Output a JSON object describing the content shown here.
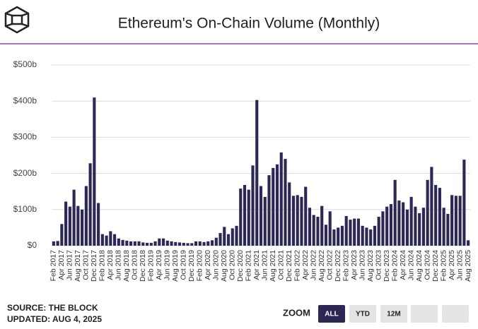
{
  "chart_data": {
    "type": "bar",
    "title": "Ethereum's On-Chain Volume (Monthly)",
    "source": "SOURCE: THE BLOCK",
    "updated": "UPDATED: AUG 4, 2025",
    "zoom": {
      "label": "ZOOM",
      "buttons": [
        "ALL",
        "YTD",
        "12M"
      ]
    },
    "color": "#2b2856",
    "grid": true,
    "ylim": [
      0,
      500
    ],
    "yticks": [
      {
        "value": 0,
        "label": "$0"
      },
      {
        "value": 100,
        "label": "$100b"
      },
      {
        "value": 200,
        "label": "$200b"
      },
      {
        "value": 300,
        "label": "$300b"
      },
      {
        "value": 400,
        "label": "$400b"
      },
      {
        "value": 500,
        "label": "$500b"
      }
    ],
    "categories": [
      "Feb 2017",
      null,
      "Apr 2017",
      null,
      "Jun 2017",
      null,
      "Aug 2017",
      null,
      "Oct 2017",
      null,
      "Dec 2017",
      null,
      "Feb 2018",
      null,
      "Apr 2018",
      null,
      "Jun 2018",
      null,
      "Aug 2018",
      null,
      "Oct 2018",
      null,
      "Dec 2018",
      null,
      "Feb 2019",
      null,
      "Apr 2019",
      null,
      "Jun 2019",
      null,
      "Aug 2019",
      null,
      "Oct 2019",
      null,
      "Dec 2019",
      null,
      "Feb 2020",
      null,
      "Apr 2020",
      null,
      "Jun 2020",
      null,
      "Aug 2020",
      null,
      "Oct 2020",
      null,
      "Dec 2020",
      null,
      "Feb 2021",
      null,
      "Apr 2021",
      null,
      "Jun 2021",
      null,
      "Aug 2021",
      null,
      "Oct 2021",
      null,
      "Dec 2021",
      null,
      "Feb 2022",
      null,
      "Apr 2022",
      null,
      "Jun 2022",
      null,
      "Aug 2022",
      null,
      "Oct 2022",
      null,
      "Dec 2022",
      null,
      "Feb 2023",
      null,
      "Apr 2023",
      null,
      "Jun 2023",
      null,
      "Aug 2023",
      null,
      "Oct 2023",
      null,
      "Dec 2023",
      null,
      "Feb 2024",
      null,
      "Apr 2024",
      null,
      "Jun 2024",
      null,
      "Aug 2024",
      null,
      "Oct 2024",
      null,
      "Dec 2024",
      null,
      "Feb 2025",
      null,
      "Apr 2025",
      null,
      "Jun 2025",
      null,
      "Aug 2025"
    ],
    "values": [
      12,
      13,
      60,
      122,
      108,
      155,
      110,
      100,
      165,
      228,
      410,
      118,
      32,
      28,
      40,
      32,
      20,
      16,
      14,
      12,
      12,
      12,
      9,
      8,
      8,
      12,
      20,
      20,
      14,
      12,
      10,
      9,
      8,
      7,
      7,
      12,
      12,
      10,
      12,
      15,
      22,
      35,
      52,
      32,
      48,
      55,
      158,
      168,
      155,
      222,
      403,
      165,
      135,
      195,
      215,
      225,
      258,
      240,
      175,
      138,
      140,
      135,
      163,
      105,
      85,
      80,
      110,
      58,
      95,
      45,
      50,
      55,
      82,
      72,
      75,
      75,
      55,
      50,
      45,
      55,
      80,
      95,
      108,
      115,
      182,
      125,
      120,
      100,
      135,
      108,
      90,
      105,
      182,
      218,
      168,
      160,
      105,
      88,
      140,
      138,
      138,
      238,
      15
    ]
  }
}
